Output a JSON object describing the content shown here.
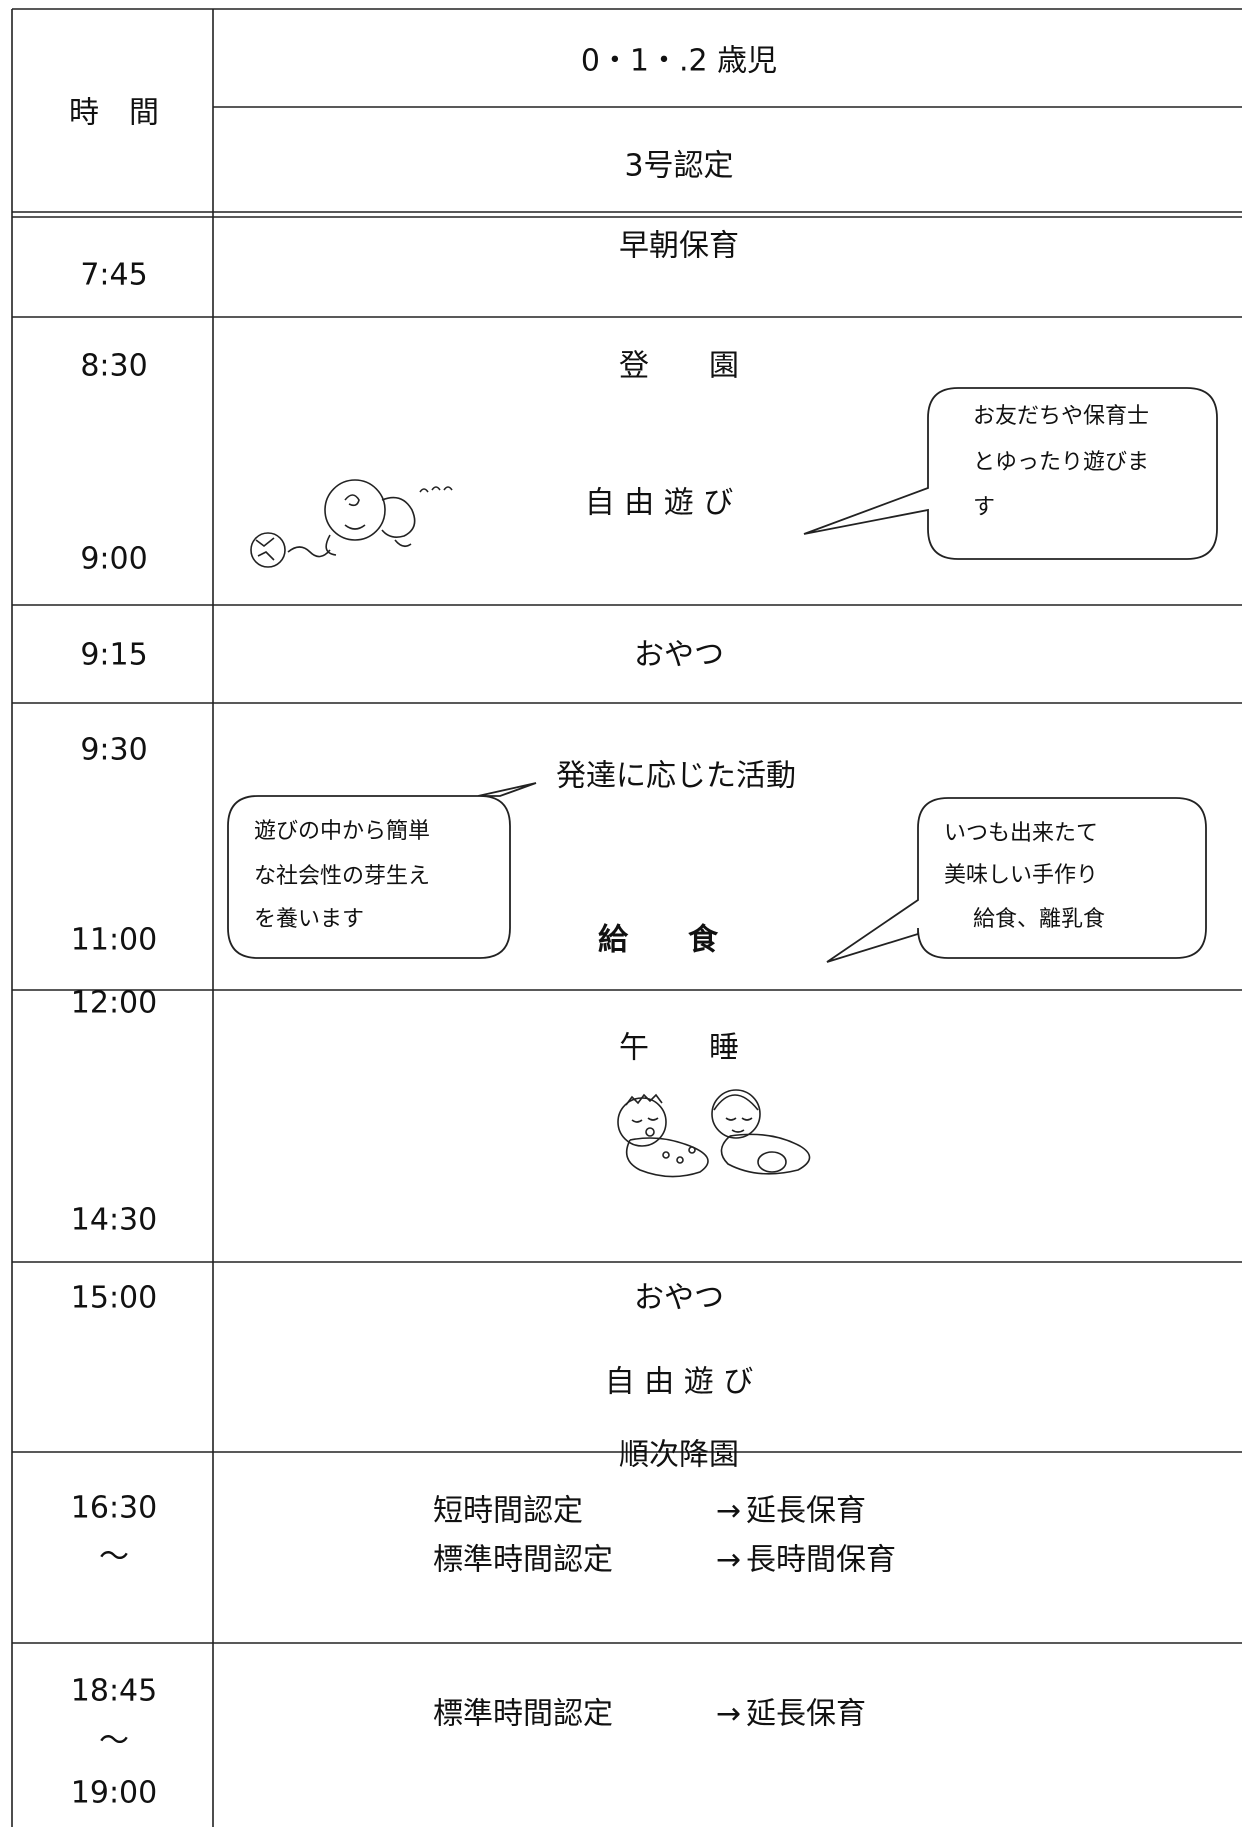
{
  "header": {
    "time_label": "時　間",
    "age": "0・1・.2 歳児",
    "certification": "3号認定"
  },
  "rows": [
    {
      "times": [
        "7:45"
      ],
      "activities": [
        "早朝保育"
      ]
    },
    {
      "times": [
        "8:30",
        "9:00"
      ],
      "activities": [
        "登　　園",
        "自 由 遊 び"
      ]
    },
    {
      "times": [
        "9:15"
      ],
      "activities": [
        "おやつ"
      ]
    },
    {
      "times": [
        "9:30",
        "11:00"
      ],
      "activities": [
        "発達に応じた活動",
        "給　　食"
      ]
    },
    {
      "times": [
        "12:00",
        "14:30"
      ],
      "activities": [
        "午　　睡"
      ]
    },
    {
      "times": [
        "15:00"
      ],
      "activities": [
        "おやつ",
        "自 由 遊 び",
        "順次降園"
      ]
    },
    {
      "times": [
        "16:30",
        "〜"
      ],
      "transfers": [
        {
          "from": "短時間認定",
          "arrow": "→",
          "to": "延長保育"
        },
        {
          "from": "標準時間認定",
          "arrow": "→",
          "to": "長時間保育"
        }
      ]
    },
    {
      "times": [
        "18:45",
        "〜",
        "19:00"
      ],
      "transfers": [
        {
          "from": "標準時間認定",
          "arrow": "→",
          "to": "延長保育"
        }
      ]
    }
  ],
  "notes": [
    {
      "lines": [
        "お友だちや保育士",
        "とゆったり遊びま",
        "す"
      ]
    },
    {
      "lines": [
        "遊びの中から簡単",
        "な社会性の芽生え",
        "を養います"
      ]
    },
    {
      "lines": [
        "いつも出来たて",
        "美味しい手作り",
        "給食、離乳食"
      ]
    }
  ]
}
